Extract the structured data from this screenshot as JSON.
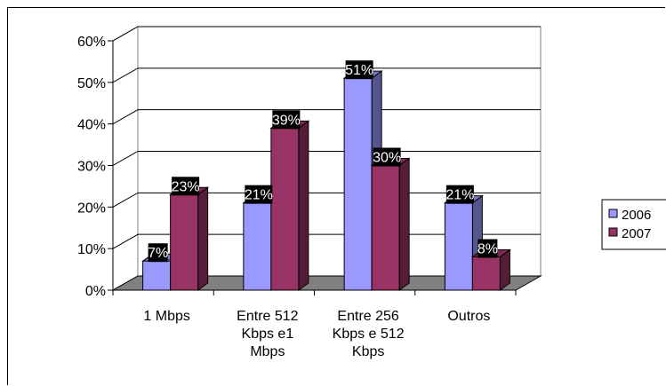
{
  "chart_data": {
    "type": "bar",
    "title": "",
    "xlabel": "",
    "ylabel": "",
    "categories": [
      [
        "1 Mbps"
      ],
      [
        "Entre 512",
        "Kbps e1",
        "Mbps"
      ],
      [
        "Entre 256",
        "Kbps e 512",
        "Kbps"
      ],
      [
        "Outros"
      ]
    ],
    "series": [
      {
        "name": "2006",
        "values": [
          7,
          21,
          51,
          21
        ],
        "labels": [
          "7%",
          "21%",
          "51%",
          "21%"
        ],
        "color": "#9999ff",
        "side_color": "#56568f",
        "top_color": "#7777c6"
      },
      {
        "name": "2007",
        "values": [
          23,
          39,
          30,
          8
        ],
        "labels": [
          "23%",
          "39%",
          "30%",
          "8%"
        ],
        "color": "#993366",
        "side_color": "#561d39",
        "top_color": "#772750"
      }
    ],
    "ylim": [
      0,
      60
    ],
    "y_ticks": [
      "0%",
      "10%",
      "20%",
      "30%",
      "40%",
      "50%",
      "60%"
    ],
    "grid": true,
    "legend_position": "right",
    "three_d": true,
    "floor_color": "#808080",
    "label_box_color": "#000000",
    "label_text_color": "#ffffff"
  }
}
